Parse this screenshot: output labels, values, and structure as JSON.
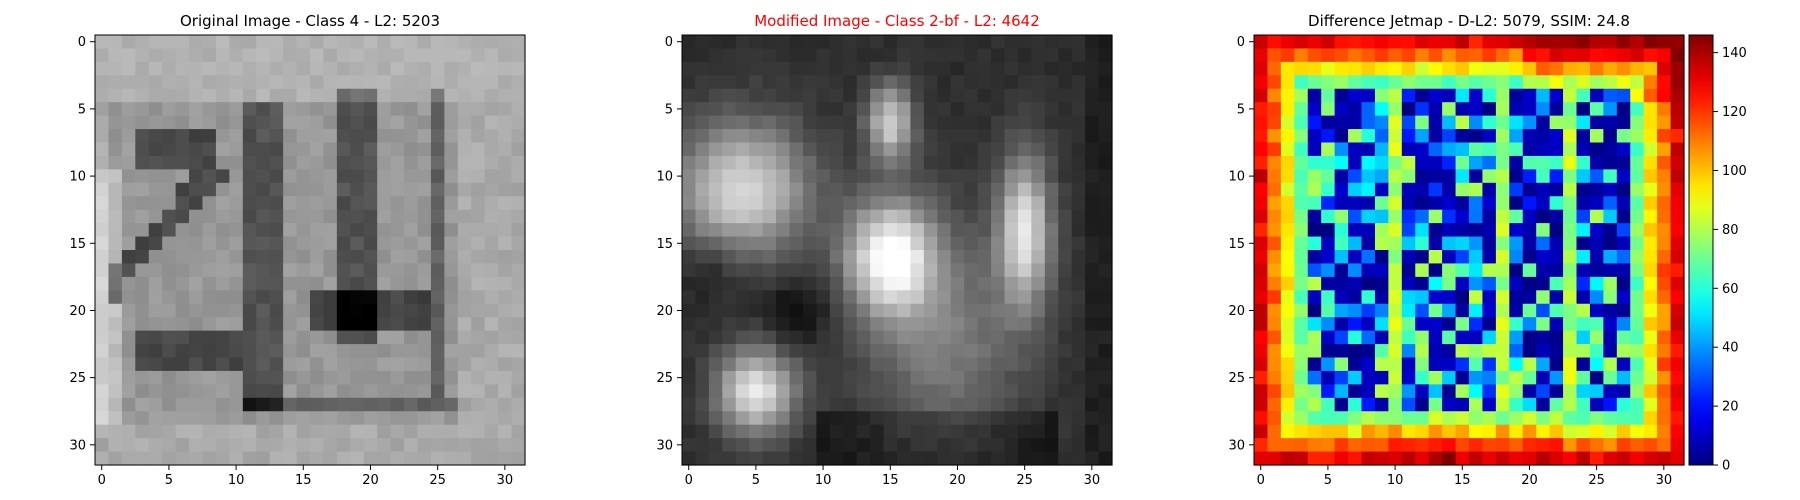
{
  "chart_data": [
    {
      "type": "heatmap",
      "title": "Original Image - Class 4 - L2: 5203",
      "title_color": "#000000",
      "colormap": "gray",
      "size": 32,
      "xlim": [
        -0.5,
        31.5
      ],
      "ylim": [
        31.5,
        -0.5
      ],
      "xticks": [
        0,
        5,
        10,
        15,
        20,
        25,
        30
      ],
      "yticks": [
        0,
        5,
        10,
        15,
        20,
        25,
        30
      ],
      "grid": false
    },
    {
      "type": "heatmap",
      "title": "Modified Image - Class 2-bf - L2: 4642",
      "title_color": "#ff0000",
      "colormap": "gray",
      "size": 32,
      "xlim": [
        -0.5,
        31.5
      ],
      "ylim": [
        31.5,
        -0.5
      ],
      "xticks": [
        0,
        5,
        10,
        15,
        20,
        25,
        30
      ],
      "yticks": [
        0,
        5,
        10,
        15,
        20,
        25,
        30
      ],
      "grid": false
    },
    {
      "type": "heatmap",
      "title": "Difference Jetmap - D-L2: 5079, SSIM: 24.8",
      "title_color": "#000000",
      "colormap": "jet",
      "size": 32,
      "xlim": [
        -0.5,
        31.5
      ],
      "ylim": [
        31.5,
        -0.5
      ],
      "xticks": [
        0,
        5,
        10,
        15,
        20,
        25,
        30
      ],
      "yticks": [
        0,
        5,
        10,
        15,
        20,
        25,
        30
      ],
      "grid": false,
      "colorbar": {
        "range": [
          0,
          146
        ],
        "ticks": [
          0,
          20,
          40,
          60,
          80,
          100,
          120,
          140
        ]
      }
    }
  ]
}
